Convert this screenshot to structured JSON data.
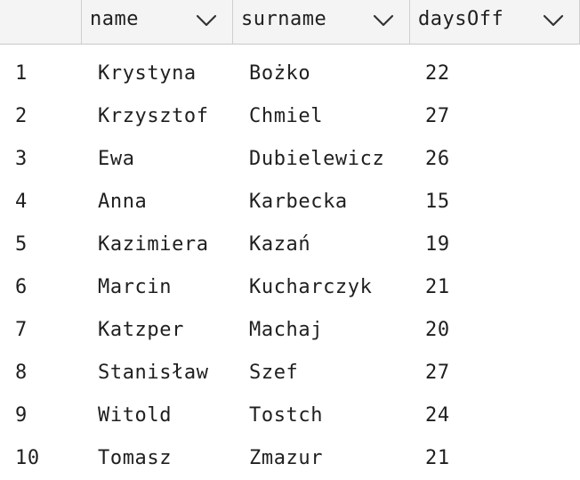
{
  "columns": [
    {
      "label": "name"
    },
    {
      "label": "surname"
    },
    {
      "label": "daysOff"
    }
  ],
  "icons": {
    "sort": "chevron-down-icon"
  },
  "rows": [
    {
      "index": "1",
      "name": "Krystyna",
      "surname": "Bożko",
      "daysOff": "22"
    },
    {
      "index": "2",
      "name": "Krzysztof",
      "surname": "Chmiel",
      "daysOff": "27"
    },
    {
      "index": "3",
      "name": "Ewa",
      "surname": "Dubielewicz",
      "daysOff": "26"
    },
    {
      "index": "4",
      "name": "Anna",
      "surname": "Karbecka",
      "daysOff": "15"
    },
    {
      "index": "5",
      "name": "Kazimiera",
      "surname": "Kazań",
      "daysOff": "19"
    },
    {
      "index": "6",
      "name": "Marcin",
      "surname": "Kucharczyk",
      "daysOff": "21"
    },
    {
      "index": "7",
      "name": "Katzper",
      "surname": "Machaj",
      "daysOff": "20"
    },
    {
      "index": "8",
      "name": "Stanisław",
      "surname": "Szef",
      "daysOff": "27"
    },
    {
      "index": "9",
      "name": "Witold",
      "surname": "Tostch",
      "daysOff": "24"
    },
    {
      "index": "10",
      "name": "Tomasz",
      "surname": "Zmazur",
      "daysOff": "21"
    }
  ]
}
